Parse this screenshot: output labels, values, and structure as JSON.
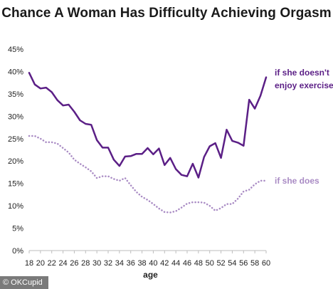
{
  "chart_data": {
    "type": "line",
    "title": "Chance A Woman Has Difficulty Achieving Orgasm",
    "xlabel": "age",
    "ylabel": "",
    "x": [
      18,
      19,
      20,
      21,
      22,
      23,
      24,
      25,
      26,
      27,
      28,
      29,
      30,
      31,
      32,
      33,
      34,
      35,
      36,
      37,
      38,
      39,
      40,
      41,
      42,
      43,
      44,
      45,
      46,
      47,
      48,
      49,
      50,
      51,
      52,
      53,
      54,
      55,
      56,
      57,
      58,
      59,
      60
    ],
    "xticks": [
      "18",
      "20",
      "22",
      "24",
      "26",
      "28",
      "30",
      "32",
      "34",
      "36",
      "38",
      "40",
      "42",
      "44",
      "46",
      "48",
      "50",
      "52",
      "54",
      "56",
      "58",
      "60"
    ],
    "xlim": [
      18,
      60
    ],
    "ylim": [
      0,
      45
    ],
    "yticks": [
      "0%",
      "5%",
      "10%",
      "15%",
      "20%",
      "25%",
      "30%",
      "35%",
      "40%",
      "45%"
    ],
    "grid": false,
    "legend": "direct labels at right end of lines",
    "series": [
      {
        "name": "if she doesn't enjoy exercise",
        "label_lines": [
          "if she doesn't",
          "enjoy exercise"
        ],
        "color": "#5b1f86",
        "style": "solid",
        "values": [
          39.7,
          37.1,
          36.2,
          36.4,
          35.4,
          33.6,
          32.4,
          32.6,
          31.0,
          29.1,
          28.3,
          28.1,
          24.7,
          23.0,
          23.0,
          20.3,
          18.9,
          21.0,
          21.1,
          21.6,
          21.6,
          22.9,
          21.5,
          22.8,
          19.1,
          20.7,
          18.2,
          16.9,
          16.6,
          19.4,
          16.3,
          20.9,
          23.3,
          24.0,
          20.7,
          27.0,
          24.5,
          24.1,
          23.4,
          33.7,
          31.7,
          34.6,
          38.7
        ]
      },
      {
        "name": "if she does",
        "label_lines": [
          "if she does"
        ],
        "color": "#a98bc4",
        "style": "dotted",
        "values": [
          25.6,
          25.6,
          25.0,
          24.2,
          24.2,
          23.9,
          22.9,
          21.9,
          20.3,
          19.4,
          18.6,
          17.7,
          16.2,
          16.6,
          16.6,
          16.0,
          15.6,
          16.2,
          14.6,
          13.1,
          12.0,
          11.3,
          10.4,
          9.4,
          8.6,
          8.5,
          8.8,
          9.6,
          10.5,
          10.8,
          10.8,
          10.7,
          10.0,
          8.9,
          9.5,
          10.4,
          10.4,
          11.6,
          13.2,
          13.6,
          14.8,
          15.6,
          15.6
        ]
      }
    ]
  },
  "credit": "© OKCupid"
}
